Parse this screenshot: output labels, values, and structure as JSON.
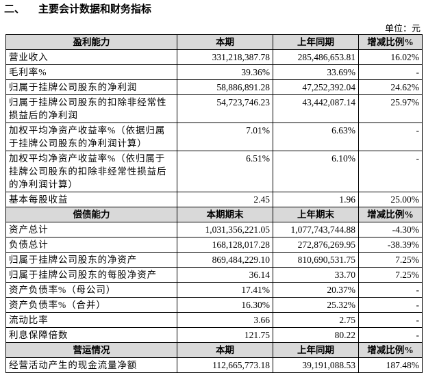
{
  "section_number": "二、",
  "title": "主要会计数据和财务指标",
  "unit": "单位：元",
  "sections": [
    {
      "header": [
        "盈利能力",
        "本期",
        "上年同期",
        "增减比例%"
      ],
      "rows": [
        [
          "营业收入",
          "331,218,387.78",
          "285,486,653.81",
          "16.02%"
        ],
        [
          "毛利率%",
          "39.36%",
          "33.69%",
          "-"
        ],
        [
          "归属于挂牌公司股东的净利润",
          "58,886,891.28",
          "47,252,392.04",
          "24.62%"
        ],
        [
          "归属于挂牌公司股东的扣除非经常性损益后的净利润",
          "54,723,746.23",
          "43,442,087.14",
          "25.97%"
        ],
        [
          "加权平均净资产收益率%（依据归属于挂牌公司股东的净利润计算）",
          "7.01%",
          "6.63%",
          "-"
        ],
        [
          "加权平均净资产收益率%（依归属于挂牌公司股东的扣除非经常性损益后的净利润计算）",
          "6.51%",
          "6.10%",
          "-"
        ],
        [
          "基本每股收益",
          "2.45",
          "1.96",
          "25.00%"
        ]
      ]
    },
    {
      "header": [
        "偿债能力",
        "本期期末",
        "上年期末",
        "增减比例%"
      ],
      "rows": [
        [
          "资产总计",
          "1,031,356,221.05",
          "1,077,743,744.88",
          "-4.30%"
        ],
        [
          "负债总计",
          "168,128,017.28",
          "272,876,269.95",
          "-38.39%"
        ],
        [
          "归属于挂牌公司股东的净资产",
          "869,484,229.10",
          "810,690,531.75",
          "7.25%"
        ],
        [
          "归属于挂牌公司股东的每股净资产",
          "36.14",
          "33.70",
          "7.25%"
        ],
        [
          "资产负债率%（母公司）",
          "17.41%",
          "20.37%",
          "-"
        ],
        [
          "资产负债率%（合并）",
          "16.30%",
          "25.32%",
          "-"
        ],
        [
          "流动比率",
          "3.66",
          "2.75",
          "-"
        ],
        [
          "利息保障倍数",
          "121.75",
          "80.22",
          "-"
        ]
      ]
    },
    {
      "header": [
        "营运情况",
        "本期",
        "上年同期",
        "增减比例%"
      ],
      "rows": [
        [
          "经营活动产生的现金流量净额",
          "112,665,773.18",
          "39,191,088.53",
          "187.48%"
        ]
      ]
    }
  ]
}
